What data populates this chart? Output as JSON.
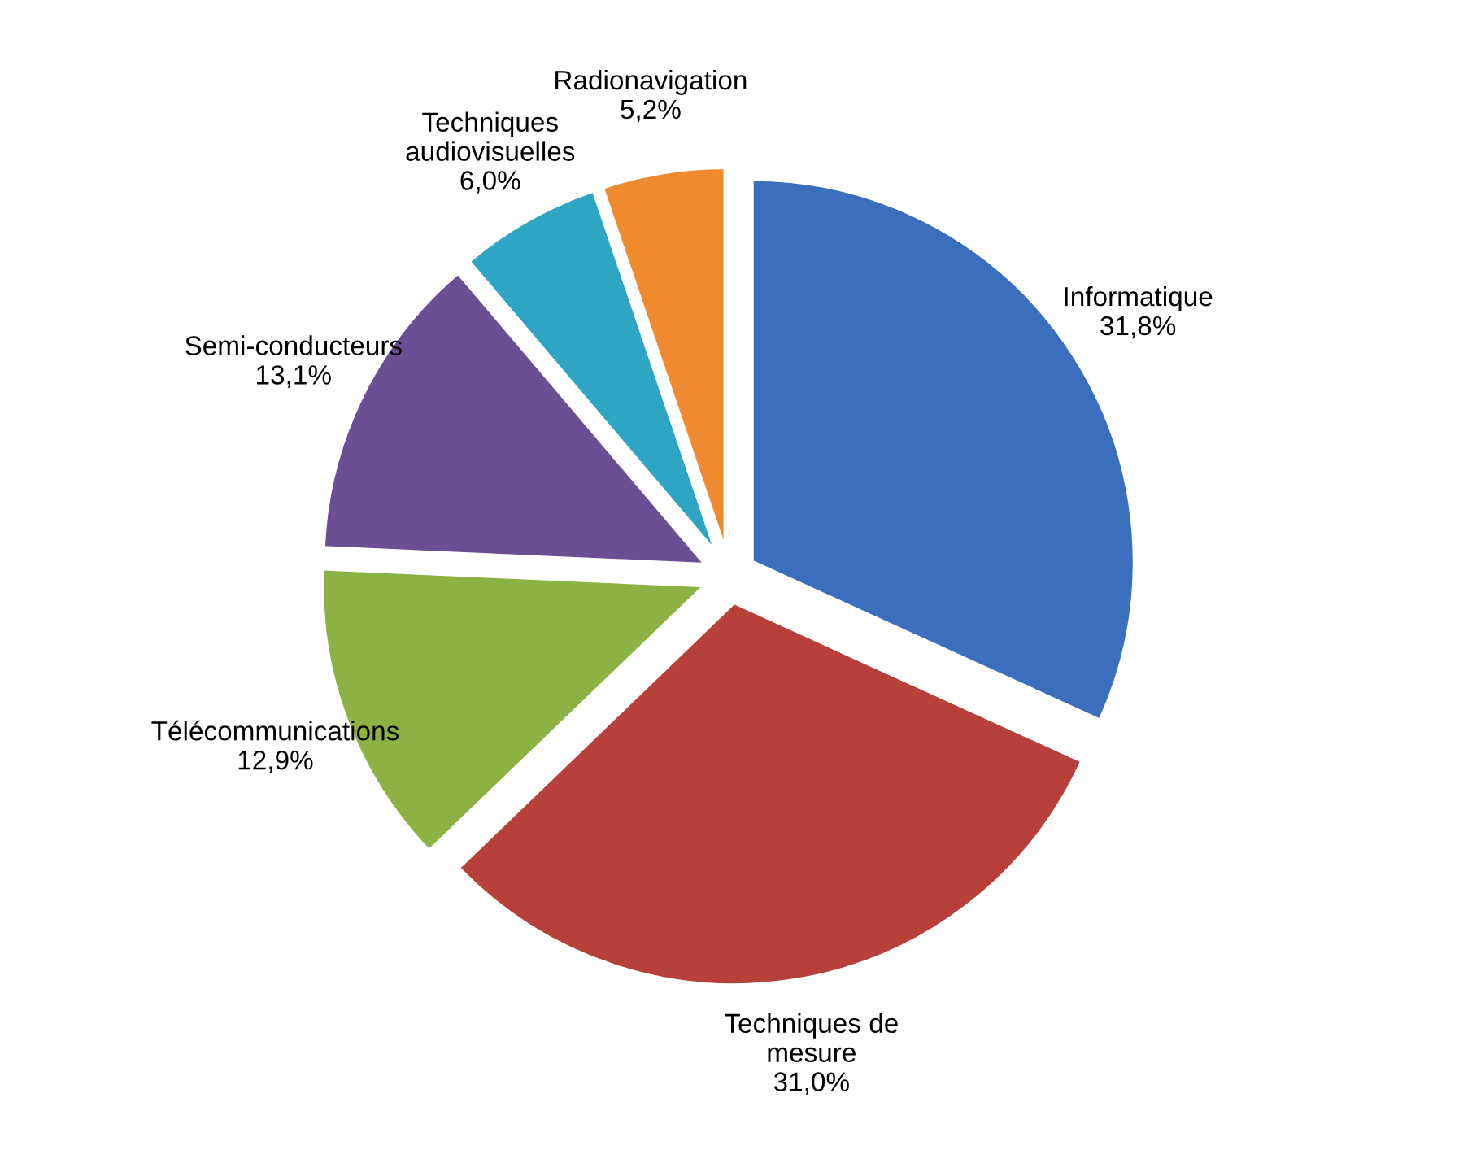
{
  "chart_data": {
    "type": "pie",
    "categories": [
      "Informatique",
      "Techniques de\nmesure",
      "Télécommunications",
      "Semi-conducteurs",
      "Techniques\naudiovisuelles",
      "Radionavigation"
    ],
    "values": [
      31.8,
      31.0,
      12.9,
      13.1,
      6.0,
      5.2
    ],
    "value_labels": [
      "31,8%",
      "31,0%",
      "12,9%",
      "13,1%",
      "6,0%",
      "5,2%"
    ],
    "colors": [
      "#3b6fbd",
      "#b8403a",
      "#8cb244",
      "#6b4f95",
      "#2ea6c3",
      "#ef8a2e"
    ]
  }
}
